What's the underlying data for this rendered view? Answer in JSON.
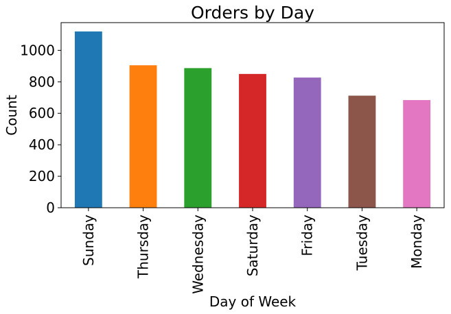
{
  "chart_data": {
    "type": "bar",
    "title": "Orders by Day",
    "xlabel": "Day of Week",
    "ylabel": "Count",
    "categories": [
      "Sunday",
      "Thursday",
      "Wednesday",
      "Saturday",
      "Friday",
      "Tuesday",
      "Monday"
    ],
    "values": [
      1120,
      905,
      887,
      850,
      827,
      712,
      684
    ],
    "colors": [
      "#1f77b4",
      "#ff7f0e",
      "#2ca02c",
      "#d62728",
      "#9467bd",
      "#8c564b",
      "#e377c2"
    ],
    "ylim": [
      0,
      1176
    ],
    "yticks": [
      0,
      200,
      400,
      600,
      800,
      1000
    ],
    "grid": false,
    "legend": "none"
  }
}
